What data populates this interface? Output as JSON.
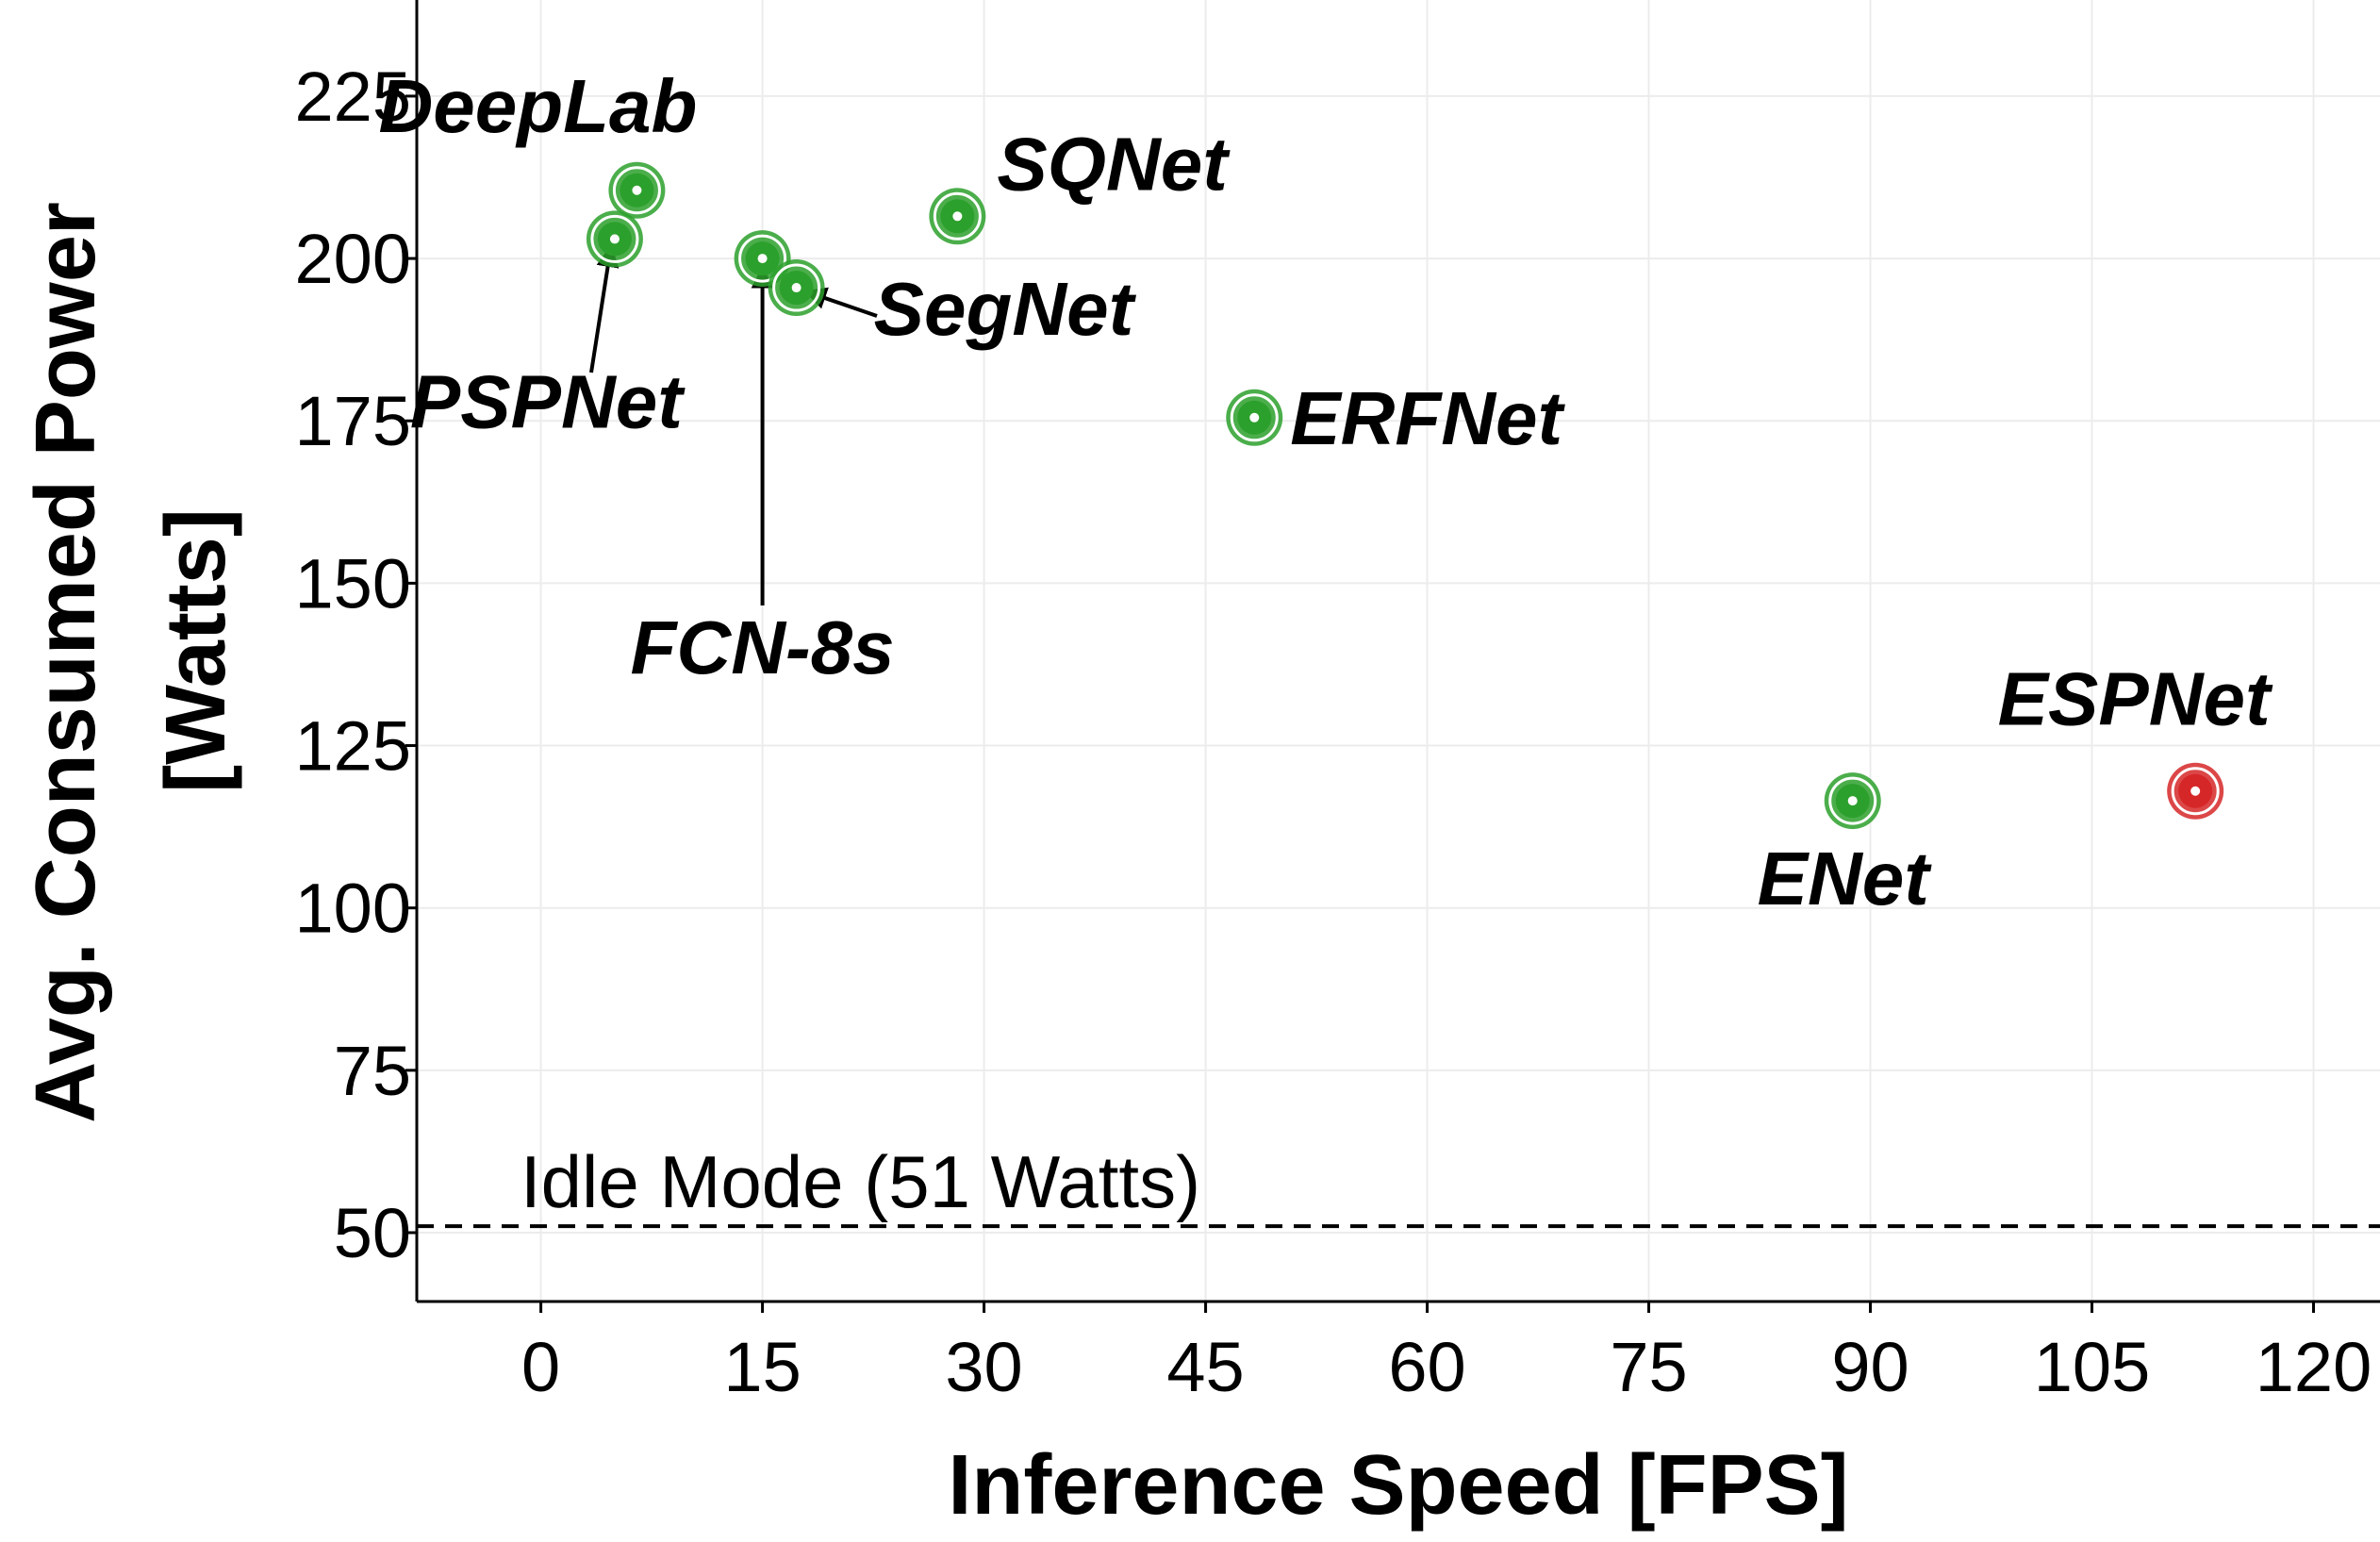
{
  "chart_data": {
    "type": "scatter",
    "xlabel": "Inference Speed [FPS]",
    "ylabel_lines": [
      "Avg. Consumed Power",
      "[Watts]"
    ],
    "xlim": [
      -8.4,
      124.5
    ],
    "ylim": [
      39.4,
      239.8
    ],
    "xticks": [
      0,
      15,
      30,
      45,
      60,
      75,
      90,
      105,
      120
    ],
    "yticks": [
      50,
      75,
      100,
      125,
      150,
      175,
      200,
      225
    ],
    "grid": true,
    "colors": {
      "green": "#2ca02c",
      "red": "#d62728"
    },
    "points": [
      {
        "label": "DeepLab",
        "x": 6.5,
        "y": 210.5,
        "color": "green"
      },
      {
        "label": "PSPNet",
        "x": 5.0,
        "y": 203.0,
        "color": "green"
      },
      {
        "label": "FCN-8s",
        "x": 15.0,
        "y": 200.0,
        "color": "green"
      },
      {
        "label": "SegNet",
        "x": 17.3,
        "y": 195.5,
        "color": "green"
      },
      {
        "label": "SQNet",
        "x": 28.2,
        "y": 206.5,
        "color": "green"
      },
      {
        "label": "ERFNet",
        "x": 48.3,
        "y": 175.5,
        "color": "green"
      },
      {
        "label": "ENet",
        "x": 88.8,
        "y": 116.5,
        "color": "green"
      },
      {
        "label": "ESPNet",
        "x": 112.0,
        "y": 118.0,
        "color": "red"
      }
    ],
    "reference_line": {
      "y": 51,
      "label": "Idle Mode (51 Watts)",
      "style": "dashed"
    }
  }
}
